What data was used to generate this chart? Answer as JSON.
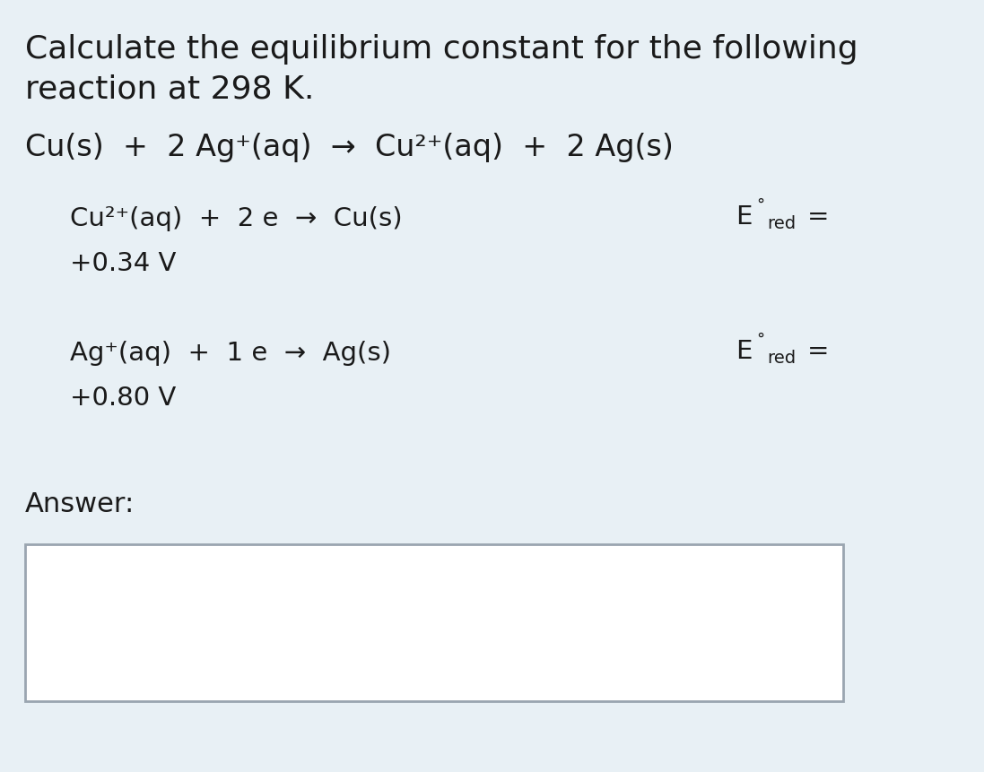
{
  "background_color": "#e8f0f5",
  "answer_box_color": "#ffffff",
  "answer_box_border": "#9aa5b0",
  "text_color": "#1a1a1a",
  "title_line1": "Calculate the equilibrium constant for the following",
  "title_line2": "reaction at 298 K.",
  "main_reaction": "Cu(s)  +  2 Ag⁺(aq)  →  Cu²⁺(aq)  +  2 Ag(s)",
  "half_reaction1_left": "Cu²⁺(aq)  +  2 e  →  Cu(s)",
  "half_reaction1_value": "+0.34 V",
  "half_reaction2_left": "Ag⁺(aq)  +  1 e  →  Ag(s)",
  "half_reaction2_value": "+0.80 V",
  "answer_label": "Answer:",
  "title_fontsize": 26,
  "reaction_fontsize": 24,
  "half_reaction_fontsize": 21,
  "answer_fontsize": 22,
  "superscript_fontsize": 13,
  "subscript_fontsize": 14,
  "eq_fontsize": 21,
  "fig_width": 10.97,
  "fig_height": 8.62,
  "dpi": 100
}
